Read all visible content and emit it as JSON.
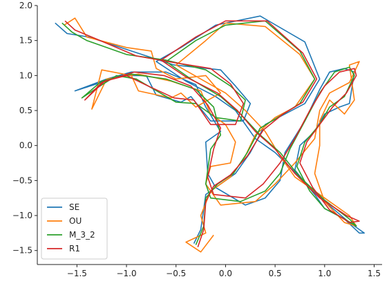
{
  "chart_data": {
    "type": "line",
    "title": "",
    "xlabel": "",
    "ylabel": "",
    "xlim": [
      -1.9,
      1.58
    ],
    "ylim": [
      -1.7,
      2.0
    ],
    "xticks": [
      -1.5,
      -1.0,
      -0.5,
      0.0,
      0.5,
      1.0,
      1.5
    ],
    "xtick_labels": [
      "−1.5",
      "−1.0",
      "−0.5",
      "0.0",
      "0.5",
      "1.0",
      "1.5"
    ],
    "yticks": [
      -1.5,
      -1.0,
      -0.5,
      0.0,
      0.5,
      1.0,
      1.5,
      2.0
    ],
    "ytick_labels": [
      "−1.5",
      "−1.0",
      "−0.5",
      "0.0",
      "0.5",
      "1.0",
      "1.5",
      "2.0"
    ],
    "grid": false,
    "legend_position": "lower-left",
    "series": [
      {
        "name": "SE",
        "color": "#1f77b4",
        "points": [
          [
            -1.72,
            1.75
          ],
          [
            -1.6,
            1.6
          ],
          [
            -1.38,
            1.55
          ],
          [
            -0.95,
            1.35
          ],
          [
            -0.52,
            1.15
          ],
          [
            -0.05,
            1.08
          ],
          [
            0.1,
            0.85
          ],
          [
            0.25,
            0.6
          ],
          [
            0.18,
            0.35
          ],
          [
            -0.15,
            0.35
          ],
          [
            -0.35,
            0.7
          ],
          [
            -0.45,
            0.62
          ],
          [
            -0.7,
            0.72
          ],
          [
            -0.8,
            1.0
          ],
          [
            -1.05,
            1.0
          ],
          [
            -1.3,
            0.88
          ],
          [
            -1.52,
            0.78
          ],
          [
            -1.2,
            0.95
          ],
          [
            -0.95,
            1.05
          ],
          [
            -0.6,
            1.05
          ],
          [
            -0.3,
            0.87
          ],
          [
            -0.2,
            0.55
          ],
          [
            -0.05,
            0.2
          ],
          [
            -0.2,
            0.05
          ],
          [
            -0.18,
            -0.4
          ],
          [
            -0.1,
            -0.6
          ],
          [
            0.2,
            -0.85
          ],
          [
            0.4,
            -0.75
          ],
          [
            0.55,
            -0.5
          ],
          [
            0.6,
            -0.1
          ],
          [
            0.8,
            0.35
          ],
          [
            0.95,
            0.8
          ],
          [
            1.05,
            1.05
          ],
          [
            1.2,
            1.1
          ],
          [
            1.3,
            1.05
          ],
          [
            1.25,
            0.6
          ],
          [
            1.15,
            0.55
          ],
          [
            1.0,
            0.45
          ],
          [
            0.9,
            0.2
          ],
          [
            0.75,
            0.0
          ],
          [
            0.7,
            -0.35
          ],
          [
            0.9,
            -0.7
          ],
          [
            1.0,
            -0.9
          ],
          [
            1.2,
            -1.05
          ],
          [
            1.35,
            -1.25
          ],
          [
            1.4,
            -1.25
          ],
          [
            1.25,
            -1.1
          ],
          [
            1.0,
            -0.8
          ],
          [
            0.75,
            -0.45
          ],
          [
            0.5,
            -0.1
          ],
          [
            0.3,
            0.1
          ],
          [
            0.1,
            0.5
          ],
          [
            -0.1,
            0.7
          ],
          [
            -0.4,
            0.92
          ],
          [
            -0.7,
            1.2
          ],
          [
            -0.45,
            1.4
          ],
          [
            -0.1,
            1.72
          ],
          [
            0.35,
            1.85
          ],
          [
            0.8,
            1.48
          ],
          [
            0.95,
            0.95
          ],
          [
            0.8,
            0.6
          ],
          [
            0.6,
            0.45
          ],
          [
            0.4,
            0.3
          ],
          [
            0.25,
            -0.1
          ],
          [
            0.1,
            -0.4
          ],
          [
            -0.05,
            -0.55
          ],
          [
            -0.2,
            -0.7
          ],
          [
            -0.25,
            -1.2
          ],
          [
            -0.32,
            -1.4
          ]
        ]
      },
      {
        "name": "OU",
        "color": "#ff7f0e",
        "points": [
          [
            -1.63,
            1.72
          ],
          [
            -1.52,
            1.82
          ],
          [
            -1.4,
            1.55
          ],
          [
            -1.0,
            1.4
          ],
          [
            -0.75,
            1.35
          ],
          [
            -0.7,
            1.1
          ],
          [
            -0.5,
            0.95
          ],
          [
            -0.2,
            1.0
          ],
          [
            -0.05,
            0.75
          ],
          [
            -0.3,
            0.55
          ],
          [
            -0.45,
            0.75
          ],
          [
            -0.55,
            0.68
          ],
          [
            -0.88,
            0.78
          ],
          [
            -0.95,
            1.0
          ],
          [
            -1.25,
            1.08
          ],
          [
            -1.35,
            0.52
          ],
          [
            -1.2,
            0.95
          ],
          [
            -0.88,
            1.02
          ],
          [
            -0.55,
            0.92
          ],
          [
            -0.25,
            0.78
          ],
          [
            -0.15,
            0.45
          ],
          [
            0.0,
            0.3
          ],
          [
            0.1,
            0.05
          ],
          [
            0.05,
            -0.25
          ],
          [
            -0.15,
            -0.3
          ],
          [
            -0.2,
            -0.55
          ],
          [
            -0.05,
            -0.85
          ],
          [
            0.3,
            -0.8
          ],
          [
            0.5,
            -0.55
          ],
          [
            0.7,
            -0.25
          ],
          [
            0.9,
            0.1
          ],
          [
            0.95,
            0.5
          ],
          [
            1.05,
            0.75
          ],
          [
            1.25,
            0.9
          ],
          [
            1.35,
            1.2
          ],
          [
            1.25,
            1.15
          ],
          [
            1.3,
            0.65
          ],
          [
            1.2,
            0.45
          ],
          [
            1.05,
            0.65
          ],
          [
            0.95,
            0.35
          ],
          [
            0.95,
            0.0
          ],
          [
            0.9,
            -0.4
          ],
          [
            1.0,
            -0.8
          ],
          [
            1.2,
            -1.1
          ],
          [
            1.32,
            -1.15
          ],
          [
            1.25,
            -1.0
          ],
          [
            1.0,
            -0.75
          ],
          [
            0.7,
            -0.45
          ],
          [
            0.55,
            -0.15
          ],
          [
            0.4,
            0.2
          ],
          [
            0.2,
            0.5
          ],
          [
            0.0,
            0.75
          ],
          [
            -0.25,
            0.95
          ],
          [
            -0.5,
            1.15
          ],
          [
            -0.2,
            1.5
          ],
          [
            0.0,
            1.75
          ],
          [
            0.4,
            1.7
          ],
          [
            0.75,
            1.3
          ],
          [
            0.9,
            0.95
          ],
          [
            0.7,
            0.55
          ],
          [
            0.5,
            0.4
          ],
          [
            0.3,
            0.15
          ],
          [
            0.2,
            -0.15
          ],
          [
            0.05,
            -0.45
          ],
          [
            -0.15,
            -0.65
          ],
          [
            -0.25,
            -1.0
          ],
          [
            -0.2,
            -1.25
          ],
          [
            -0.4,
            -1.38
          ],
          [
            -0.25,
            -1.52
          ],
          [
            -0.12,
            -1.28
          ]
        ]
      },
      {
        "name": "M_3_2",
        "color": "#2ca02c",
        "points": [
          [
            -1.65,
            1.75
          ],
          [
            -1.55,
            1.62
          ],
          [
            -1.4,
            1.5
          ],
          [
            -1.0,
            1.3
          ],
          [
            -0.6,
            1.22
          ],
          [
            -0.2,
            1.08
          ],
          [
            0.05,
            0.85
          ],
          [
            0.2,
            0.65
          ],
          [
            0.15,
            0.35
          ],
          [
            -0.1,
            0.4
          ],
          [
            -0.3,
            0.6
          ],
          [
            -0.5,
            0.62
          ],
          [
            -0.72,
            0.8
          ],
          [
            -0.9,
            0.95
          ],
          [
            -1.1,
            1.0
          ],
          [
            -1.3,
            0.82
          ],
          [
            -1.45,
            0.68
          ],
          [
            -1.25,
            0.92
          ],
          [
            -0.95,
            1.02
          ],
          [
            -0.6,
            0.95
          ],
          [
            -0.3,
            0.8
          ],
          [
            -0.12,
            0.55
          ],
          [
            -0.05,
            0.15
          ],
          [
            -0.15,
            -0.05
          ],
          [
            -0.2,
            -0.55
          ],
          [
            -0.15,
            -0.75
          ],
          [
            0.15,
            -0.8
          ],
          [
            0.4,
            -0.65
          ],
          [
            0.55,
            -0.4
          ],
          [
            0.65,
            -0.05
          ],
          [
            0.8,
            0.35
          ],
          [
            0.95,
            0.75
          ],
          [
            1.1,
            1.05
          ],
          [
            1.25,
            1.12
          ],
          [
            1.3,
            1.0
          ],
          [
            1.2,
            0.7
          ],
          [
            1.05,
            0.55
          ],
          [
            0.95,
            0.3
          ],
          [
            0.8,
            0.05
          ],
          [
            0.72,
            -0.3
          ],
          [
            0.85,
            -0.65
          ],
          [
            1.0,
            -0.9
          ],
          [
            1.2,
            -1.05
          ],
          [
            1.32,
            -1.15
          ],
          [
            1.25,
            -1.05
          ],
          [
            1.0,
            -0.78
          ],
          [
            0.75,
            -0.45
          ],
          [
            0.55,
            -0.1
          ],
          [
            0.35,
            0.15
          ],
          [
            0.15,
            0.45
          ],
          [
            -0.05,
            0.7
          ],
          [
            -0.35,
            0.95
          ],
          [
            -0.6,
            1.2
          ],
          [
            -0.3,
            1.5
          ],
          [
            0.0,
            1.72
          ],
          [
            0.4,
            1.78
          ],
          [
            0.75,
            1.35
          ],
          [
            0.9,
            0.95
          ],
          [
            0.75,
            0.6
          ],
          [
            0.55,
            0.42
          ],
          [
            0.35,
            0.25
          ],
          [
            0.22,
            -0.1
          ],
          [
            0.08,
            -0.4
          ],
          [
            -0.08,
            -0.55
          ],
          [
            -0.2,
            -0.75
          ],
          [
            -0.22,
            -1.15
          ],
          [
            -0.3,
            -1.42
          ]
        ]
      },
      {
        "name": "R1",
        "color": "#d62728",
        "points": [
          [
            -1.62,
            1.78
          ],
          [
            -1.52,
            1.65
          ],
          [
            -1.3,
            1.52
          ],
          [
            -0.9,
            1.28
          ],
          [
            -0.5,
            1.18
          ],
          [
            -0.15,
            1.1
          ],
          [
            0.05,
            0.88
          ],
          [
            0.18,
            0.6
          ],
          [
            0.1,
            0.3
          ],
          [
            -0.15,
            0.3
          ],
          [
            -0.32,
            0.65
          ],
          [
            -0.52,
            0.68
          ],
          [
            -0.78,
            0.85
          ],
          [
            -1.0,
            1.0
          ],
          [
            -1.22,
            0.92
          ],
          [
            -1.42,
            0.65
          ],
          [
            -1.25,
            0.9
          ],
          [
            -0.92,
            1.05
          ],
          [
            -0.62,
            1.0
          ],
          [
            -0.35,
            0.85
          ],
          [
            -0.18,
            0.58
          ],
          [
            -0.05,
            0.25
          ],
          [
            -0.12,
            -0.05
          ],
          [
            -0.18,
            -0.45
          ],
          [
            -0.12,
            -0.7
          ],
          [
            0.2,
            -0.75
          ],
          [
            0.38,
            -0.55
          ],
          [
            0.55,
            -0.25
          ],
          [
            0.7,
            0.1
          ],
          [
            0.85,
            0.5
          ],
          [
            1.0,
            0.85
          ],
          [
            1.15,
            1.05
          ],
          [
            1.3,
            1.1
          ],
          [
            1.32,
            1.0
          ],
          [
            1.22,
            0.75
          ],
          [
            1.08,
            0.55
          ],
          [
            0.95,
            0.3
          ],
          [
            0.82,
            0.05
          ],
          [
            0.75,
            -0.25
          ],
          [
            0.88,
            -0.6
          ],
          [
            1.05,
            -0.92
          ],
          [
            1.25,
            -1.1
          ],
          [
            1.35,
            -1.08
          ],
          [
            1.22,
            -1.0
          ],
          [
            0.95,
            -0.75
          ],
          [
            0.7,
            -0.4
          ],
          [
            0.5,
            -0.05
          ],
          [
            0.3,
            0.2
          ],
          [
            0.12,
            0.5
          ],
          [
            -0.08,
            0.75
          ],
          [
            -0.4,
            0.98
          ],
          [
            -0.65,
            1.22
          ],
          [
            -0.3,
            1.55
          ],
          [
            0.0,
            1.78
          ],
          [
            0.42,
            1.78
          ],
          [
            0.78,
            1.32
          ],
          [
            0.92,
            0.95
          ],
          [
            0.78,
            0.62
          ],
          [
            0.58,
            0.45
          ],
          [
            0.38,
            0.22
          ],
          [
            0.22,
            -0.15
          ],
          [
            0.05,
            -0.42
          ],
          [
            -0.12,
            -0.58
          ],
          [
            -0.2,
            -0.8
          ],
          [
            -0.22,
            -1.2
          ],
          [
            -0.28,
            -1.45
          ]
        ]
      }
    ]
  }
}
